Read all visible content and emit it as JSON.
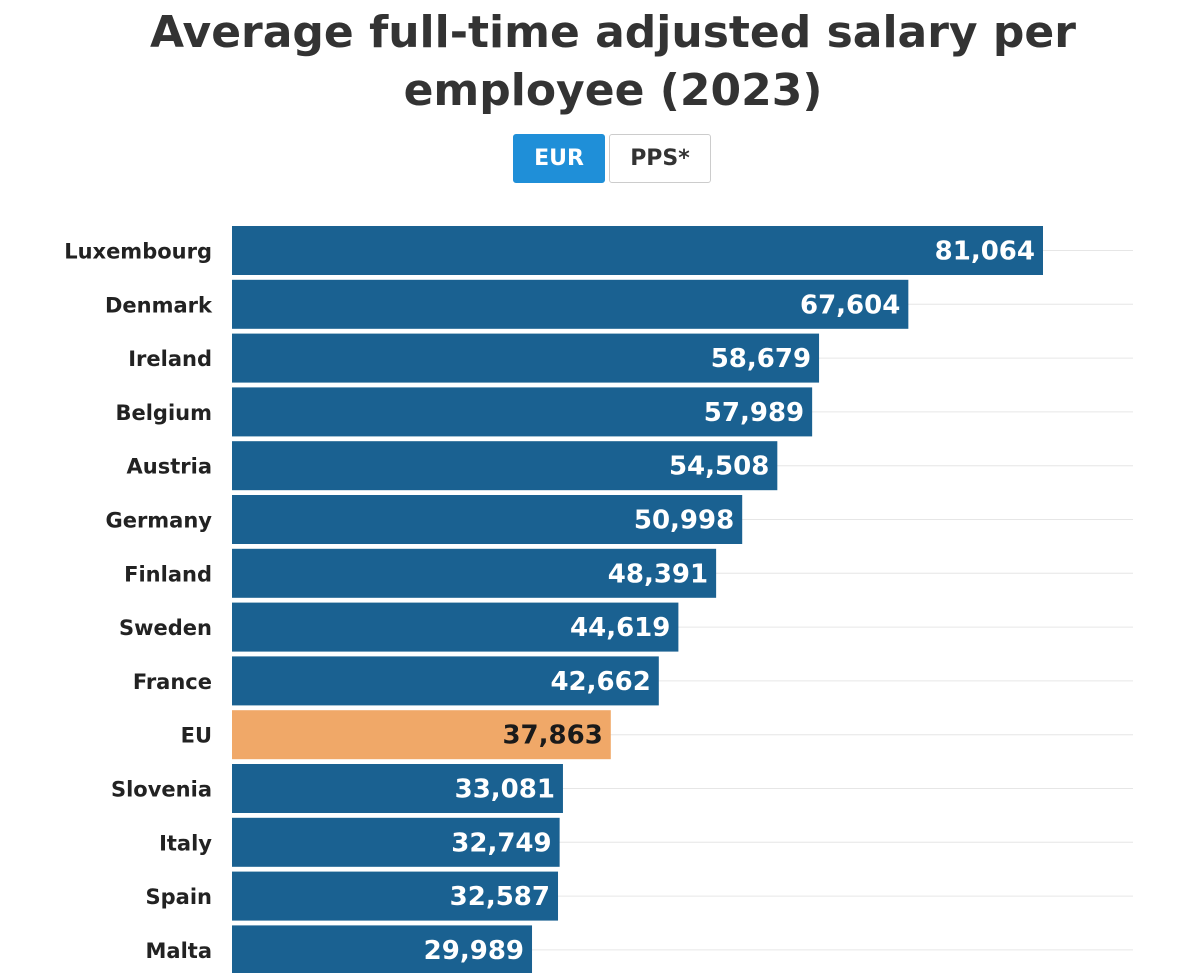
{
  "title_line1": "Average full-time adjusted salary per",
  "title_line2": "employee (2023)",
  "toggle": {
    "active_label": "EUR",
    "inactive_label": "PPS*"
  },
  "colors": {
    "bar": "#1a6191",
    "highlight": "#f0a868",
    "label_on_bar": "#ffffff",
    "label_on_highlight": "#1a1a1a",
    "category_label": "#222222",
    "gridline": "#e6e6e6"
  },
  "chart_data": {
    "type": "bar",
    "orientation": "horizontal",
    "title": "Average full-time adjusted salary per employee (2023)",
    "unit": "EUR",
    "categories": [
      "Luxembourg",
      "Denmark",
      "Ireland",
      "Belgium",
      "Austria",
      "Germany",
      "Finland",
      "Sweden",
      "France",
      "EU",
      "Slovenia",
      "Italy",
      "Spain",
      "Malta"
    ],
    "values": [
      81064,
      67604,
      58679,
      57989,
      54508,
      50998,
      48391,
      44619,
      42662,
      37863,
      33081,
      32749,
      32587,
      29989
    ],
    "value_labels": [
      "81,064",
      "67,604",
      "58,679",
      "57,989",
      "54,508",
      "50,998",
      "48,391",
      "44,619",
      "42,662",
      "37,863",
      "33,081",
      "32,749",
      "32,587",
      "29,989"
    ],
    "highlight": "EU",
    "xlim": [
      0,
      90000
    ],
    "grid": true,
    "legend": "none"
  }
}
